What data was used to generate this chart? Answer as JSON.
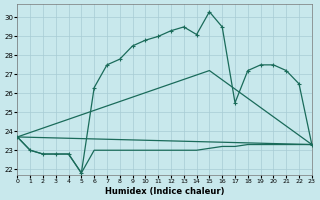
{
  "xlabel": "Humidex (Indice chaleur)",
  "bg_color": "#c8e8ec",
  "grid_color": "#a8ccd4",
  "line_color": "#1a6b5a",
  "xlim": [
    0,
    23
  ],
  "ylim": [
    21.7,
    30.7
  ],
  "yticks": [
    22,
    23,
    24,
    25,
    26,
    27,
    28,
    29,
    30
  ],
  "xticks": [
    0,
    1,
    2,
    3,
    4,
    5,
    6,
    7,
    8,
    9,
    10,
    11,
    12,
    13,
    14,
    15,
    16,
    17,
    18,
    19,
    20,
    21,
    22,
    23
  ],
  "series1_x": [
    0,
    1,
    2,
    3,
    4,
    5,
    6,
    7,
    8,
    9,
    10,
    11,
    12,
    13,
    14,
    15,
    16,
    17,
    18,
    19,
    20,
    21,
    22,
    23
  ],
  "series1_y": [
    23.7,
    23.0,
    22.8,
    22.8,
    22.8,
    21.8,
    23.0,
    23.0,
    23.0,
    23.0,
    23.0,
    23.0,
    23.0,
    23.0,
    23.0,
    23.1,
    23.2,
    23.2,
    23.3,
    23.3,
    23.3,
    23.3,
    23.3,
    23.3
  ],
  "series2_x": [
    0,
    1,
    2,
    3,
    4,
    5,
    6,
    7,
    8,
    9,
    10,
    11,
    12,
    13,
    14,
    15,
    16,
    17,
    18,
    19,
    20,
    21,
    22,
    23
  ],
  "series2_y": [
    23.7,
    23.0,
    22.8,
    22.8,
    22.8,
    21.8,
    26.3,
    27.5,
    27.8,
    28.5,
    28.8,
    29.0,
    29.3,
    29.5,
    29.1,
    30.3,
    29.5,
    25.5,
    27.2,
    27.5,
    27.5,
    27.2,
    26.5,
    23.3
  ],
  "series3_x": [
    0,
    23
  ],
  "series3_y": [
    23.7,
    23.3
  ],
  "series4_x": [
    0,
    15,
    23
  ],
  "series4_y": [
    23.7,
    27.2,
    23.3
  ]
}
